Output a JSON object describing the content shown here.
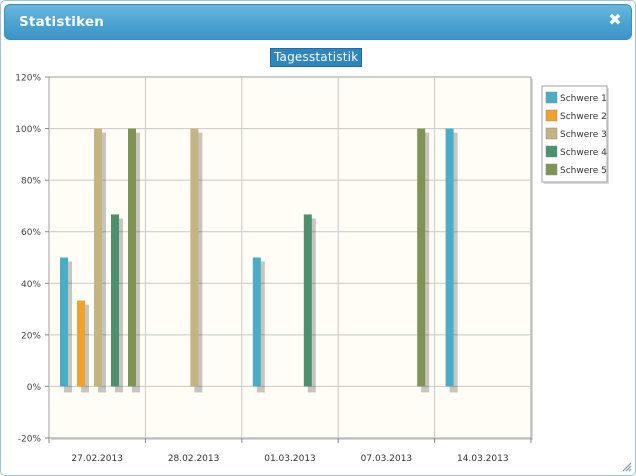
{
  "window": {
    "title": "Statistiken",
    "close_icon": "close-icon"
  },
  "chart_data": {
    "type": "bar",
    "title": "Tagesstatistik",
    "categories": [
      "27.02.2013",
      "28.02.2013",
      "01.03.2013",
      "07.03.2013",
      "14.03.2013"
    ],
    "ylim": [
      -20,
      120
    ],
    "yticks": [
      "-20%",
      "0%",
      "20%",
      "40%",
      "60%",
      "80%",
      "100%",
      "120%"
    ],
    "grid": true,
    "legend_position": "right",
    "series": [
      {
        "name": "Schwere 1",
        "color": "#4bacc6",
        "values": [
          50,
          0,
          50,
          0,
          100
        ]
      },
      {
        "name": "Schwere 2",
        "color": "#f0a22e",
        "values": [
          33.3,
          0,
          0,
          0,
          0
        ]
      },
      {
        "name": "Schwere 3",
        "color": "#c3b481",
        "values": [
          100,
          100,
          0,
          0,
          0
        ]
      },
      {
        "name": "Schwere 4",
        "color": "#4e8f6e",
        "values": [
          66.7,
          0,
          66.7,
          0,
          0
        ]
      },
      {
        "name": "Schwere 5",
        "color": "#7f9453",
        "values": [
          100,
          0,
          0,
          100,
          0
        ]
      }
    ]
  }
}
